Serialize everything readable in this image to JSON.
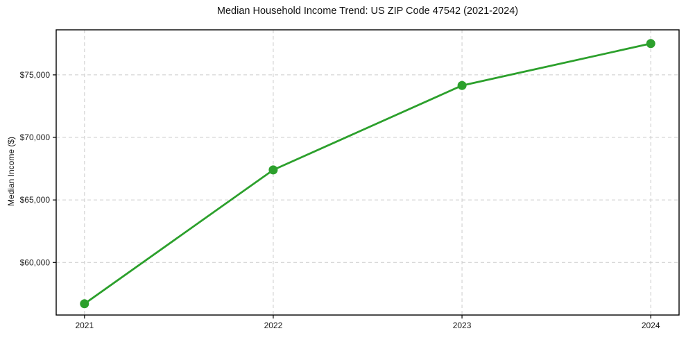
{
  "chart_data": {
    "type": "line",
    "title": "Median Household Income Trend: US ZIP Code 47542 (2021-2024)",
    "xlabel": "",
    "ylabel": "Median Income ($)",
    "x": [
      2021,
      2022,
      2023,
      2024
    ],
    "x_tick_labels": [
      "2021",
      "2022",
      "2023",
      "2024"
    ],
    "values": [
      56700,
      67400,
      74150,
      77500
    ],
    "yticks": [
      60000,
      65000,
      70000,
      75000
    ],
    "y_tick_labels": [
      "$60,000",
      "$65,000",
      "$70,000",
      "$75,000"
    ],
    "xlim": [
      2020.85,
      2024.15
    ],
    "ylim": [
      55800,
      78600
    ],
    "grid": true,
    "legend": false,
    "line_color": "#2ca02c",
    "marker": "circle",
    "grid_color": "#cccccc",
    "spine_color": "#000000",
    "tick_label_color": "#1a1a1a",
    "background": "#ffffff"
  }
}
